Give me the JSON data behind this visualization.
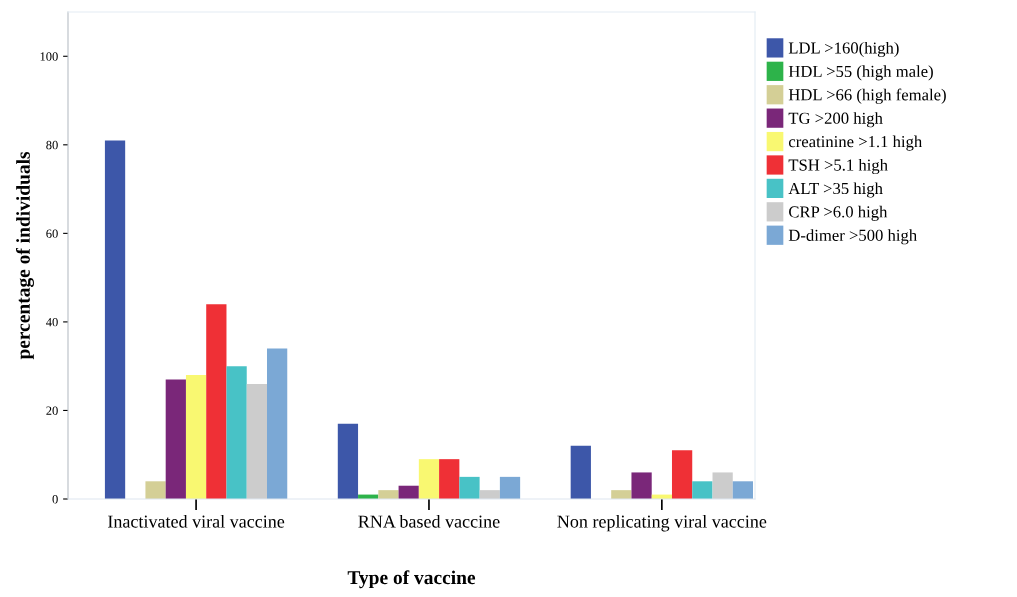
{
  "chart_data": {
    "type": "bar",
    "xlabel": "Type of vaccine",
    "ylabel": "percentage of individuals",
    "categories": [
      "Inactivated viral vaccine",
      "RNA based vaccine",
      "Non replicating viral vaccine"
    ],
    "series": [
      {
        "name": "LDL >160(high)",
        "color": "#3d57a9",
        "values": [
          81,
          17,
          12
        ]
      },
      {
        "name": "HDL >55 (high male)",
        "color": "#2db34a",
        "values": [
          0,
          1,
          0
        ]
      },
      {
        "name": "HDL >66 (high female)",
        "color": "#d4cf96",
        "values": [
          4,
          2,
          2
        ]
      },
      {
        "name": "TG >200 high",
        "color": "#7a2779",
        "values": [
          27,
          3,
          6
        ]
      },
      {
        "name": "creatinine >1.1 high",
        "color": "#f9f871",
        "values": [
          28,
          9,
          1
        ]
      },
      {
        "name": "TSH >5.1 high",
        "color": "#ef3036",
        "values": [
          44,
          9,
          11
        ]
      },
      {
        "name": "ALT >35 high",
        "color": "#48c2c6",
        "values": [
          30,
          5,
          4
        ]
      },
      {
        "name": "CRP >6.0 high",
        "color": "#cccccc",
        "values": [
          26,
          2,
          6
        ]
      },
      {
        "name": "D-dimer >500 high",
        "color": "#7ba8d5",
        "values": [
          34,
          5,
          4
        ]
      }
    ],
    "ylim": [
      0,
      110
    ],
    "yticks": [
      0,
      20,
      40,
      60,
      80,
      100
    ],
    "grid": false,
    "legend": "top right"
  }
}
